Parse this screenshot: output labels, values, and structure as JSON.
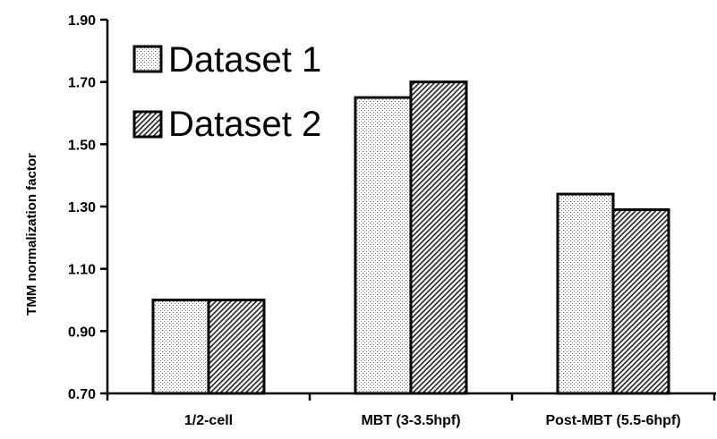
{
  "chart_data": {
    "type": "bar",
    "title": "",
    "xlabel": "",
    "ylabel": "TMM normalization factor",
    "ylim": [
      0.7,
      1.9
    ],
    "yticks": [
      "0.70",
      "0.90",
      "1.10",
      "1.30",
      "1.50",
      "1.70",
      "1.90"
    ],
    "categories": [
      "1/2-cell",
      "MBT (3-3.5hpf)",
      "Post-MBT (5.5-6hpf)"
    ],
    "series": [
      {
        "name": "Dataset 1",
        "values": [
          1.0,
          1.65,
          1.34
        ],
        "pattern": "dots"
      },
      {
        "name": "Dataset 2",
        "values": [
          1.0,
          1.7,
          1.29
        ],
        "pattern": "diagonal-hatch"
      }
    ],
    "grid": false,
    "legend": "top-left"
  }
}
